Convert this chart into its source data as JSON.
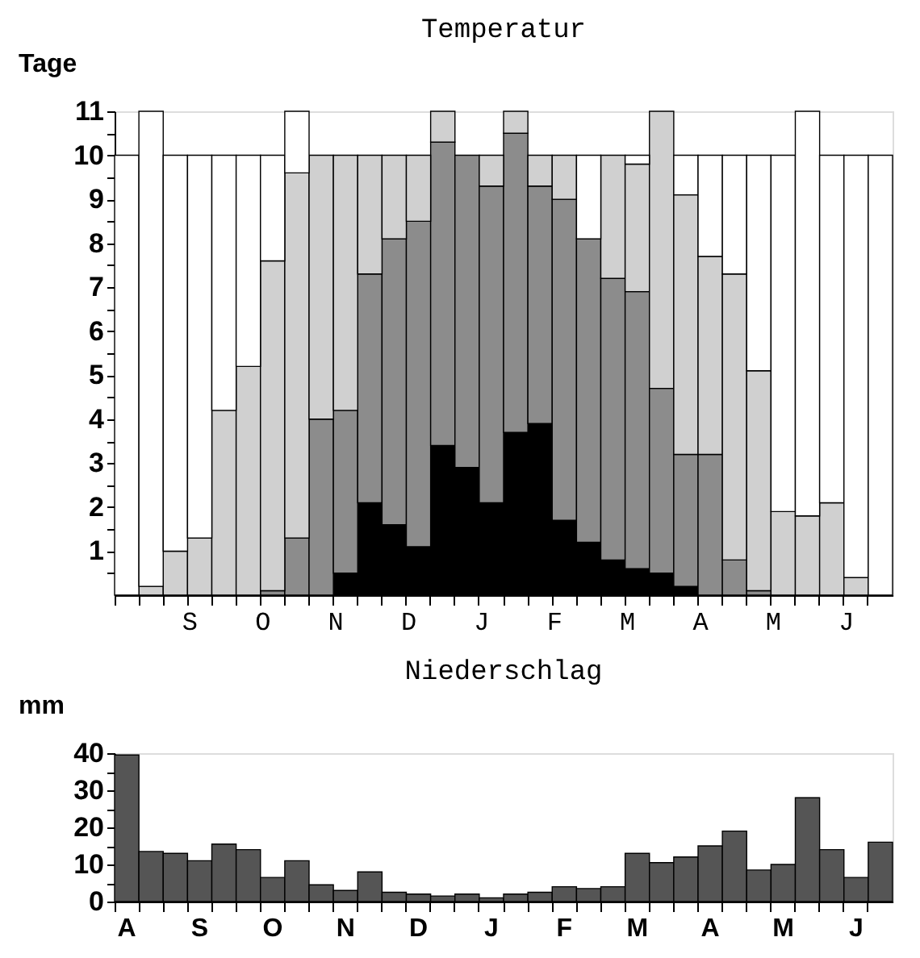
{
  "chart_data": [
    {
      "type": "bar",
      "stacked": true,
      "title": "Temperatur",
      "ylabel": "Tage",
      "categories": [
        null,
        null,
        null,
        "S",
        null,
        null,
        "O",
        null,
        null,
        "N",
        null,
        null,
        "D",
        null,
        null,
        "J",
        null,
        null,
        "F",
        null,
        null,
        "M",
        null,
        null,
        "A",
        null,
        null,
        "M",
        null,
        null,
        "J",
        null
      ],
      "series": [
        {
          "color": "#000000",
          "values": [
            0,
            0,
            0,
            0,
            0,
            0,
            0,
            0,
            0,
            0.5,
            2.1,
            1.6,
            1.1,
            3.4,
            2.9,
            2.1,
            3.7,
            3.9,
            1.7,
            1.2,
            0.8,
            0.6,
            0.5,
            0.2,
            0,
            0,
            0,
            0,
            0,
            0,
            0,
            0
          ]
        },
        {
          "color": "#8c8c8c",
          "values": [
            0,
            0,
            0,
            0,
            0,
            0,
            0.1,
            1.3,
            4.0,
            3.7,
            5.2,
            6.5,
            7.4,
            6.9,
            7.1,
            7.2,
            6.8,
            5.4,
            7.3,
            6.9,
            6.4,
            6.3,
            4.2,
            3.0,
            3.2,
            0.8,
            0.1,
            0,
            0,
            0,
            0,
            0
          ]
        },
        {
          "color": "#d0d0d0",
          "values": [
            0,
            0.2,
            1.0,
            1.3,
            4.2,
            5.2,
            7.5,
            8.3,
            6.0,
            5.8,
            2.7,
            1.9,
            1.5,
            0.7,
            0,
            0.7,
            0.5,
            0.7,
            1.0,
            0,
            2.8,
            2.9,
            6.3,
            5.9,
            4.5,
            6.5,
            5.0,
            1.9,
            1.8,
            2.1,
            0.4,
            0
          ]
        },
        {
          "color": "#ffffff",
          "values": [
            10,
            10.8,
            9.0,
            8.7,
            5.8,
            4.8,
            2.4,
            1.4,
            0,
            0,
            0,
            0,
            0,
            0,
            0,
            0,
            0,
            0,
            0,
            1.9,
            0,
            0.2,
            0,
            0.9,
            2.3,
            2.7,
            4.9,
            8.1,
            9.2,
            7.9,
            9.6,
            10
          ]
        }
      ],
      "ylim": [
        0,
        11
      ],
      "yticks": [
        {
          "value": 0.5,
          "label": null
        },
        1,
        {
          "value": 1.5,
          "label": null
        },
        2,
        {
          "value": 2.5,
          "label": null
        },
        3,
        {
          "value": 3.5,
          "label": null
        },
        4,
        {
          "value": 4.5,
          "label": null
        },
        5,
        {
          "value": 5.5,
          "label": null
        },
        6,
        {
          "value": 6.5,
          "label": null
        },
        7,
        {
          "value": 7.5,
          "label": null
        },
        8,
        {
          "value": 8.5,
          "label": null
        },
        9,
        {
          "value": 9.5,
          "label": null
        },
        10,
        {
          "value": 10.5,
          "label": null
        },
        11
      ]
    },
    {
      "type": "bar",
      "title": "Niederschlag",
      "ylabel": "mm",
      "color": "#555555",
      "categories": [
        "A",
        null,
        null,
        "S",
        null,
        null,
        "O",
        null,
        null,
        "N",
        null,
        null,
        "D",
        null,
        null,
        "J",
        null,
        null,
        "F",
        null,
        null,
        "M",
        null,
        null,
        "A",
        null,
        null,
        "M",
        null,
        null,
        "J",
        null
      ],
      "values": [
        39.5,
        13.5,
        13,
        11,
        15.5,
        14,
        6.5,
        11,
        4.5,
        3,
        8,
        2.5,
        2,
        1.5,
        2,
        1,
        2,
        2.5,
        4,
        3.5,
        4,
        13,
        10.5,
        12,
        15,
        19,
        8.5,
        10,
        28,
        14,
        6.5,
        16
      ],
      "ylim": [
        0,
        40
      ],
      "yticks": [
        0,
        {
          "value": 5,
          "label": null
        },
        10,
        {
          "value": 15,
          "label": null
        },
        20,
        {
          "value": 25,
          "label": null
        },
        30,
        {
          "value": 35,
          "label": null
        },
        40
      ]
    }
  ]
}
